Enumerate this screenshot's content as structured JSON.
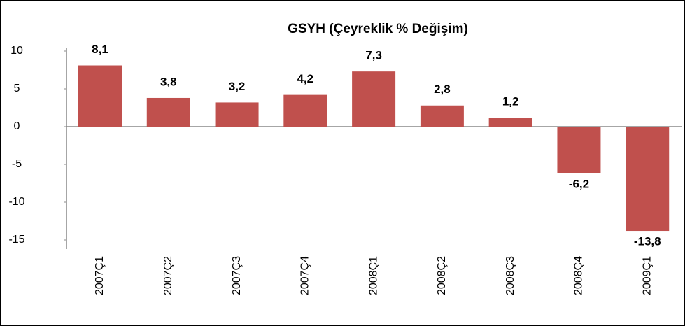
{
  "chart_data": {
    "type": "bar",
    "title": "GSYH (Çeyreklik % Değişim)",
    "categories": [
      "2007Ç1",
      "2007Ç2",
      "2007Ç3",
      "2007Ç4",
      "2008Ç1",
      "2008Ç2",
      "2008Ç3",
      "2008Ç4",
      "2009Ç1"
    ],
    "values": [
      8.1,
      3.8,
      3.2,
      4.2,
      7.3,
      2.8,
      1.2,
      -6.2,
      -13.8
    ],
    "value_labels": [
      "8,1",
      "3,8",
      "3,2",
      "4,2",
      "7,3",
      "2,8",
      "1,2",
      "-6,2",
      "-13,8"
    ],
    "color": "#c0504d",
    "ylim": [
      -15,
      10
    ],
    "yticks": [
      10,
      5,
      0,
      -5,
      -10,
      -15
    ],
    "grid": false
  }
}
